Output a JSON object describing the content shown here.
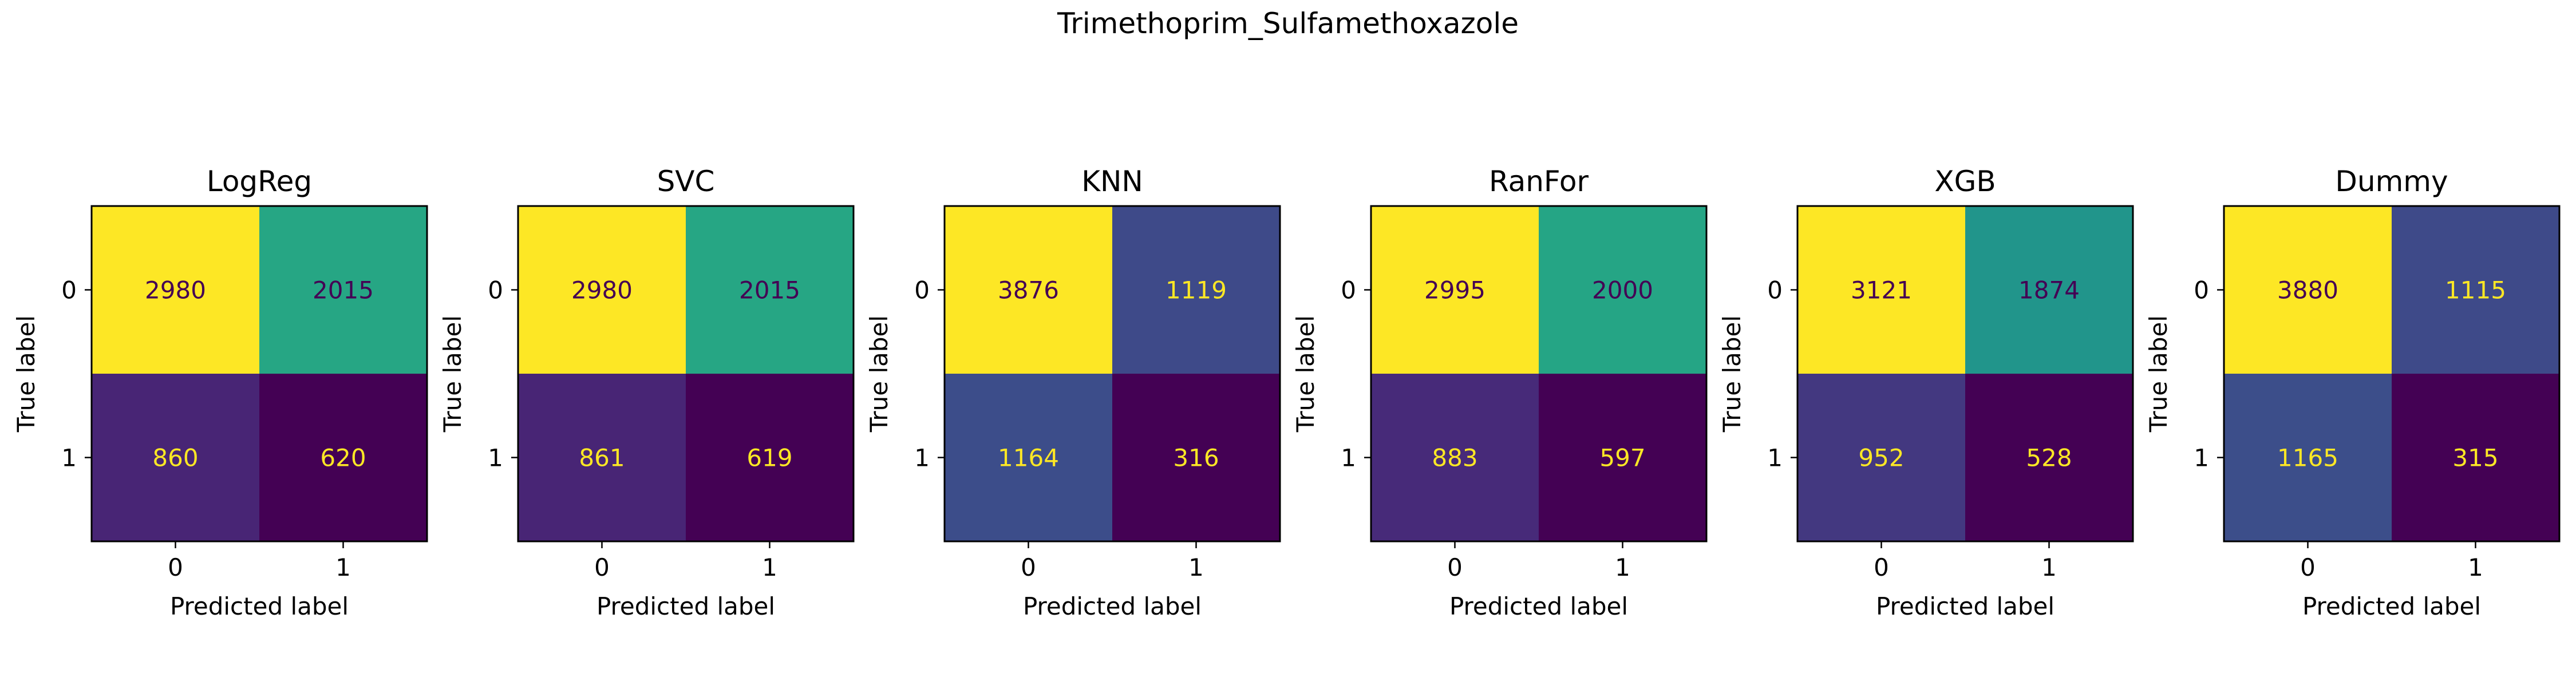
{
  "figure": {
    "suptitle": "Trimethoprim_Sulfamethoxazole"
  },
  "colormap": {
    "name": "viridis",
    "low_text_color": "#fde725",
    "high_text_color": "#440154"
  },
  "chart_data": [
    {
      "type": "heatmap",
      "title": "LogReg",
      "xlabel": "Predicted label",
      "ylabel": "True label",
      "x_tick_labels": [
        "0",
        "1"
      ],
      "y_tick_labels": [
        "0",
        "1"
      ],
      "matrix": [
        [
          2980,
          2015
        ],
        [
          860,
          620
        ]
      ]
    },
    {
      "type": "heatmap",
      "title": "SVC",
      "xlabel": "Predicted label",
      "ylabel": "True label",
      "x_tick_labels": [
        "0",
        "1"
      ],
      "y_tick_labels": [
        "0",
        "1"
      ],
      "matrix": [
        [
          2980,
          2015
        ],
        [
          861,
          619
        ]
      ]
    },
    {
      "type": "heatmap",
      "title": "KNN",
      "xlabel": "Predicted label",
      "ylabel": "True label",
      "x_tick_labels": [
        "0",
        "1"
      ],
      "y_tick_labels": [
        "0",
        "1"
      ],
      "matrix": [
        [
          3876,
          1119
        ],
        [
          1164,
          316
        ]
      ]
    },
    {
      "type": "heatmap",
      "title": "RanFor",
      "xlabel": "Predicted label",
      "ylabel": "True label",
      "x_tick_labels": [
        "0",
        "1"
      ],
      "y_tick_labels": [
        "0",
        "1"
      ],
      "matrix": [
        [
          2995,
          2000
        ],
        [
          883,
          597
        ]
      ]
    },
    {
      "type": "heatmap",
      "title": "XGB",
      "xlabel": "Predicted label",
      "ylabel": "True label",
      "x_tick_labels": [
        "0",
        "1"
      ],
      "y_tick_labels": [
        "0",
        "1"
      ],
      "matrix": [
        [
          3121,
          1874
        ],
        [
          952,
          528
        ]
      ]
    },
    {
      "type": "heatmap",
      "title": "Dummy",
      "xlabel": "Predicted label",
      "ylabel": "True label",
      "x_tick_labels": [
        "0",
        "1"
      ],
      "y_tick_labels": [
        "0",
        "1"
      ],
      "matrix": [
        [
          3880,
          1115
        ],
        [
          1165,
          315
        ]
      ]
    }
  ]
}
